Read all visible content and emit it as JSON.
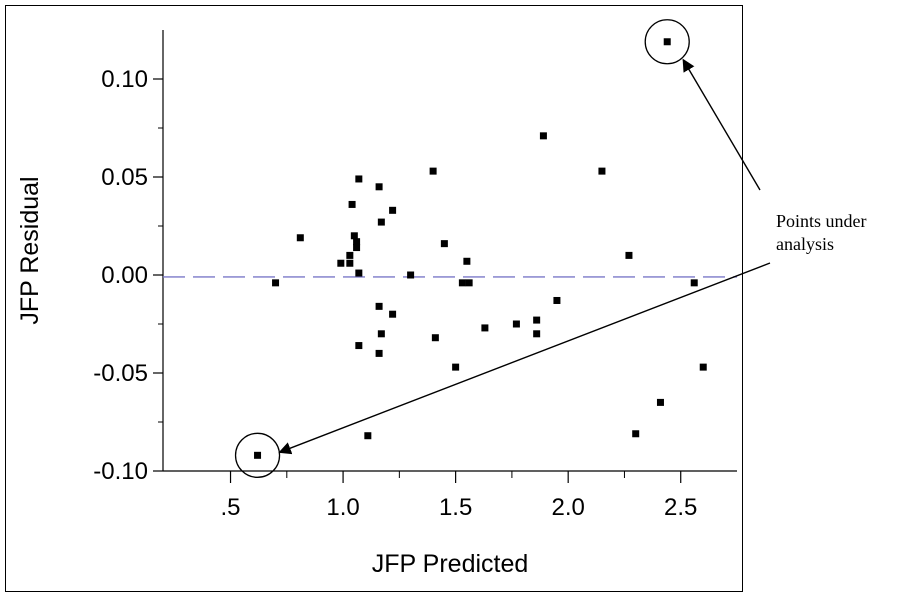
{
  "chart_data": {
    "type": "scatter",
    "title": "",
    "xlabel": "JFP Predicted",
    "ylabel": "JFP Residual",
    "xlim": [
      0.2,
      2.75
    ],
    "ylim": [
      -0.1,
      0.125
    ],
    "x_ticks": [
      0.5,
      1.0,
      1.5,
      2.0,
      2.5
    ],
    "x_tick_labels": [
      ".5",
      "1.0",
      "1.5",
      "2.0",
      "2.5"
    ],
    "y_ticks": [
      -0.1,
      -0.05,
      0.0,
      0.05,
      0.1
    ],
    "y_tick_labels": [
      "-0.10",
      "-0.05",
      "0.00",
      "0.05",
      "0.10"
    ],
    "y_minor_ticks": [
      -0.075,
      -0.025,
      0.025,
      0.075
    ],
    "x_minor_ticks": [
      0.75,
      1.25,
      1.75,
      2.25
    ],
    "reference_line": {
      "y": -0.001,
      "style": "dashed",
      "color": "#7a78c8"
    },
    "marker_color": "#000000",
    "points": [
      {
        "x": 0.7,
        "y": -0.004
      },
      {
        "x": 0.81,
        "y": 0.019
      },
      {
        "x": 0.99,
        "y": 0.006
      },
      {
        "x": 1.03,
        "y": 0.01
      },
      {
        "x": 1.03,
        "y": 0.006
      },
      {
        "x": 1.04,
        "y": 0.036
      },
      {
        "x": 1.05,
        "y": 0.02
      },
      {
        "x": 1.06,
        "y": 0.017
      },
      {
        "x": 1.06,
        "y": 0.014
      },
      {
        "x": 1.07,
        "y": 0.049
      },
      {
        "x": 1.07,
        "y": 0.001
      },
      {
        "x": 1.07,
        "y": -0.036
      },
      {
        "x": 1.11,
        "y": -0.082
      },
      {
        "x": 1.16,
        "y": 0.045
      },
      {
        "x": 1.16,
        "y": -0.016
      },
      {
        "x": 1.16,
        "y": -0.04
      },
      {
        "x": 1.17,
        "y": 0.027
      },
      {
        "x": 1.17,
        "y": -0.03
      },
      {
        "x": 1.22,
        "y": 0.033
      },
      {
        "x": 1.22,
        "y": -0.02
      },
      {
        "x": 1.3,
        "y": 0.0
      },
      {
        "x": 1.4,
        "y": 0.053
      },
      {
        "x": 1.41,
        "y": -0.032
      },
      {
        "x": 1.45,
        "y": 0.016
      },
      {
        "x": 1.5,
        "y": -0.047
      },
      {
        "x": 1.53,
        "y": -0.004
      },
      {
        "x": 1.55,
        "y": 0.007
      },
      {
        "x": 1.56,
        "y": -0.004
      },
      {
        "x": 1.63,
        "y": -0.027
      },
      {
        "x": 1.77,
        "y": -0.025
      },
      {
        "x": 1.86,
        "y": -0.023
      },
      {
        "x": 1.86,
        "y": -0.03
      },
      {
        "x": 1.89,
        "y": 0.071
      },
      {
        "x": 1.95,
        "y": -0.013
      },
      {
        "x": 2.15,
        "y": 0.053
      },
      {
        "x": 2.27,
        "y": 0.01
      },
      {
        "x": 2.3,
        "y": -0.081
      },
      {
        "x": 2.41,
        "y": -0.065
      },
      {
        "x": 2.56,
        "y": -0.004
      },
      {
        "x": 2.6,
        "y": -0.047
      },
      {
        "x": 0.62,
        "y": -0.092
      },
      {
        "x": 2.44,
        "y": 0.119
      }
    ],
    "highlighted_points": [
      {
        "x": 2.44,
        "y": 0.119
      },
      {
        "x": 0.62,
        "y": -0.092
      }
    ],
    "annotation": {
      "line1": "Points under",
      "line2": "analysis"
    }
  }
}
